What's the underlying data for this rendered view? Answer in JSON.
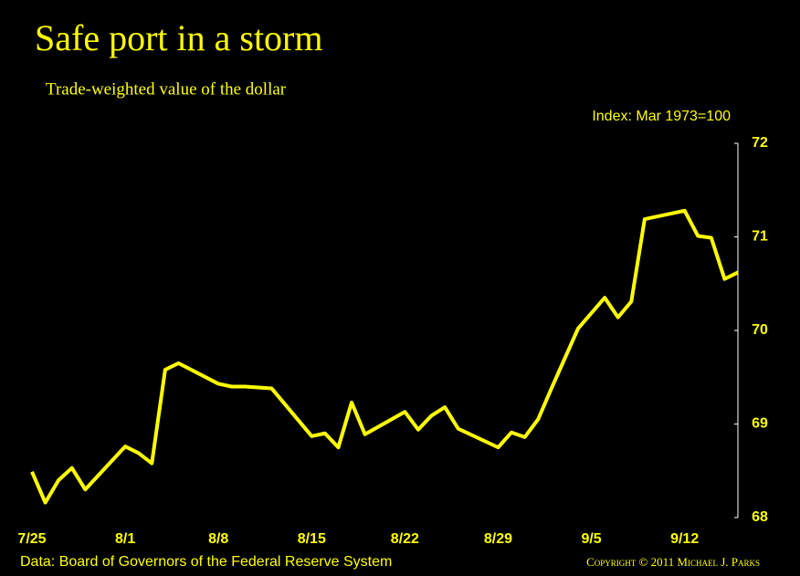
{
  "chart_data": {
    "type": "line",
    "title": "Safe port in a storm",
    "subtitle": "Trade-weighted value of the dollar",
    "y_axis_label": "Index: Mar 1973=100",
    "source": "Data: Board of Governors of the Federal Reserve System",
    "copyright": "Copyright © 2011 Michael J. Parks",
    "x": [
      0,
      1,
      2,
      3,
      4,
      7,
      8,
      9,
      10,
      11,
      14,
      15,
      16,
      17,
      18,
      21,
      22,
      23,
      24,
      25,
      28,
      29,
      30,
      31,
      32,
      35,
      36,
      37,
      38,
      39,
      40,
      41,
      43,
      44,
      45,
      46,
      49,
      50,
      51,
      52,
      53
    ],
    "series": [
      {
        "name": "Trade-weighted value of the dollar",
        "color": "#ffff00",
        "values": [
          68.49,
          68.16,
          68.4,
          68.53,
          68.3,
          68.76,
          68.69,
          68.58,
          69.58,
          69.65,
          69.43,
          69.4,
          69.4,
          69.39,
          69.38,
          68.87,
          68.9,
          68.75,
          69.23,
          68.89,
          69.13,
          68.94,
          69.09,
          69.18,
          68.95,
          68.75,
          68.91,
          68.86,
          69.05,
          69.38,
          69.7,
          70.02,
          70.35,
          70.14,
          70.31,
          71.19,
          71.28,
          71.01,
          70.99,
          70.55,
          70.62
        ]
      }
    ],
    "xlim": [
      0,
      53
    ],
    "xticks": [
      {
        "value": 0,
        "label": "7/25"
      },
      {
        "value": 7,
        "label": "8/1"
      },
      {
        "value": 14,
        "label": "8/8"
      },
      {
        "value": 21,
        "label": "8/15"
      },
      {
        "value": 28,
        "label": "8/22"
      },
      {
        "value": 35,
        "label": "8/29"
      },
      {
        "value": 42,
        "label": "9/5"
      },
      {
        "value": 49,
        "label": "9/12"
      }
    ],
    "ylim": [
      68,
      72
    ],
    "yticks": [
      68,
      69,
      70,
      71,
      72
    ],
    "y_axis_side": "right"
  }
}
